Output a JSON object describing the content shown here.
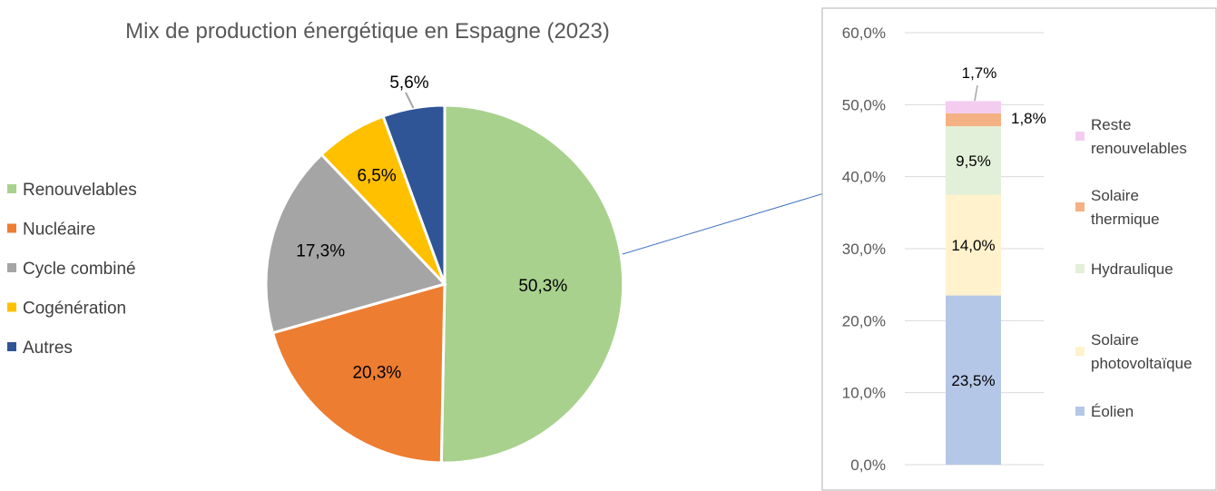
{
  "chart_data": [
    {
      "type": "pie",
      "title": "Mix de production énergétique en Espagne (2023)",
      "legend_position": "left",
      "slices": [
        {
          "name": "Renouvelables",
          "value": 50.3,
          "label": "50,3%",
          "color": "#a9d18e"
        },
        {
          "name": "Nucléaire",
          "value": 20.3,
          "label": "20,3%",
          "color": "#ed7d31"
        },
        {
          "name": "Cycle combiné",
          "value": 17.3,
          "label": "17,3%",
          "color": "#a5a5a5"
        },
        {
          "name": "Cogénération",
          "value": 6.5,
          "label": "6,5%",
          "color": "#ffc000"
        },
        {
          "name": "Autres",
          "value": 5.6,
          "label": "5,6%",
          "color": "#2f5597"
        }
      ]
    },
    {
      "type": "bar",
      "stacked": true,
      "breakdown_of": "Renouvelables",
      "ylim": [
        0,
        60
      ],
      "y_ticks": [
        "0,0%",
        "10,0%",
        "20,0%",
        "30,0%",
        "40,0%",
        "50,0%",
        "60,0%"
      ],
      "grid": true,
      "legend_position": "right",
      "segments": [
        {
          "name": "Éolien",
          "value": 23.5,
          "label": "23,5%",
          "color": "#b4c7e7"
        },
        {
          "name": "Solaire photovoltaïque",
          "name_lines": [
            "Solaire",
            "photovoltaïque"
          ],
          "value": 14.0,
          "label": "14,0%",
          "color": "#fff2cc"
        },
        {
          "name": "Hydraulique",
          "name_lines": [
            "Hydraulique"
          ],
          "value": 9.5,
          "label": "9,5%",
          "color": "#e2f0d9"
        },
        {
          "name": "Solaire thermique",
          "name_lines": [
            "Solaire",
            "thermique"
          ],
          "value": 1.8,
          "label": "1,8%",
          "color": "#f4b183"
        },
        {
          "name": "Reste renouvelables",
          "name_lines": [
            "Reste",
            "renouvelables"
          ],
          "value": 1.7,
          "label": "1,7%",
          "color": "#f3ccf0"
        }
      ]
    }
  ]
}
